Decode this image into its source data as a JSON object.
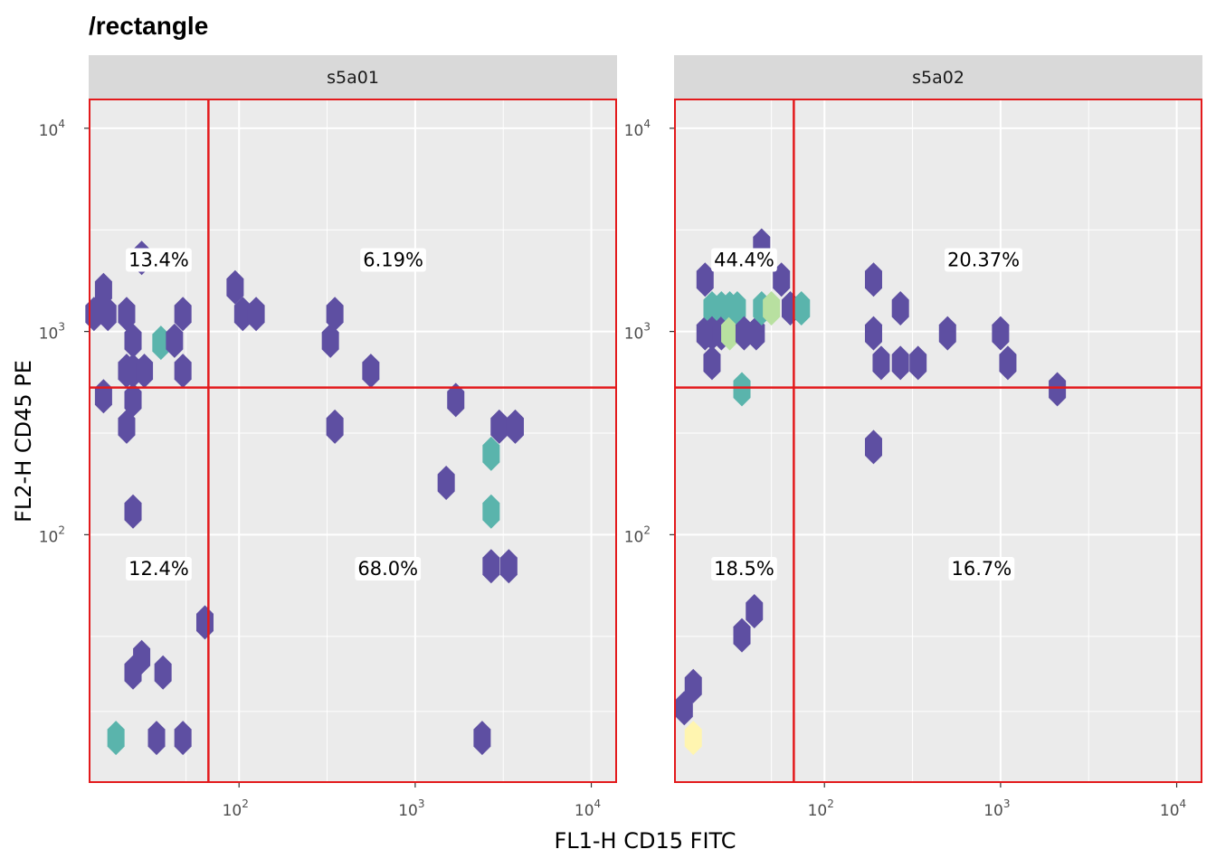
{
  "title": "/rectangle",
  "x_axis_title": "FL1-H CD15 FITC",
  "y_axis_title": "FL2-H CD45 PE",
  "colors": {
    "panel_bg": "#ebebeb",
    "strip_bg": "#d9d9d9",
    "grid": "#ffffff",
    "gate": "#e31a1c",
    "label_bg": "#ffffff",
    "hex_low": "#5e4fa2",
    "hex_mid": "#5ab4ac",
    "hex_high": "#b8e0a0",
    "hex_max": "#fff5b0"
  },
  "chart_data": {
    "type": "scatter",
    "geom": "hexbin",
    "xscale": "log10",
    "yscale": "log10",
    "xlim": [
      14,
      14000
    ],
    "ylim": [
      6,
      14000
    ],
    "x_ticks": [
      {
        "value": 100,
        "base": "10",
        "exp": "2"
      },
      {
        "value": 1000,
        "base": "10",
        "exp": "3"
      },
      {
        "value": 10000,
        "base": "10",
        "exp": "4"
      }
    ],
    "y_ticks": [
      {
        "value": 100,
        "base": "10",
        "exp": "2"
      },
      {
        "value": 1000,
        "base": "10",
        "exp": "3"
      },
      {
        "value": 10000,
        "base": "10",
        "exp": "4"
      }
    ],
    "grid": true,
    "panels": [
      {
        "strip": "s5a01",
        "gate_x": 67,
        "gate_y": 530,
        "gate_box": {
          "x": [
            14,
            14000
          ],
          "y": [
            6,
            14000
          ]
        },
        "quadrants": [
          {
            "label": "13.4%",
            "x": 35,
            "y": 2250
          },
          {
            "label": "6.19%",
            "x": 750,
            "y": 2250
          },
          {
            "label": "12.4%",
            "x": 35,
            "y": 68
          },
          {
            "label": "68.0%",
            "x": 700,
            "y": 68
          }
        ],
        "hexes": [
          {
            "x": 15,
            "y": 1220,
            "level": 1
          },
          {
            "x": 17,
            "y": 1600,
            "level": 1
          },
          {
            "x": 18,
            "y": 1220,
            "level": 1
          },
          {
            "x": 17,
            "y": 480,
            "level": 1
          },
          {
            "x": 23,
            "y": 1220,
            "level": 1
          },
          {
            "x": 25,
            "y": 900,
            "level": 1
          },
          {
            "x": 25,
            "y": 640,
            "level": 1
          },
          {
            "x": 25,
            "y": 460,
            "level": 1
          },
          {
            "x": 23,
            "y": 640,
            "level": 1
          },
          {
            "x": 23,
            "y": 340,
            "level": 1
          },
          {
            "x": 29,
            "y": 640,
            "level": 1
          },
          {
            "x": 28,
            "y": 2300,
            "level": 1
          },
          {
            "x": 36,
            "y": 880,
            "level": 2
          },
          {
            "x": 43,
            "y": 900,
            "level": 1
          },
          {
            "x": 48,
            "y": 1220,
            "level": 1
          },
          {
            "x": 48,
            "y": 640,
            "level": 1
          },
          {
            "x": 25,
            "y": 130,
            "level": 1
          },
          {
            "x": 64,
            "y": 37,
            "level": 1
          },
          {
            "x": 28,
            "y": 25,
            "level": 1
          },
          {
            "x": 25,
            "y": 21,
            "level": 1
          },
          {
            "x": 37,
            "y": 21,
            "level": 1
          },
          {
            "x": 20,
            "y": 10,
            "level": 2
          },
          {
            "x": 34,
            "y": 10,
            "level": 1
          },
          {
            "x": 48,
            "y": 10,
            "level": 1
          },
          {
            "x": 95,
            "y": 1650,
            "level": 1
          },
          {
            "x": 105,
            "y": 1220,
            "level": 1
          },
          {
            "x": 125,
            "y": 1220,
            "level": 1
          },
          {
            "x": 330,
            "y": 900,
            "level": 1
          },
          {
            "x": 350,
            "y": 1220,
            "level": 1
          },
          {
            "x": 350,
            "y": 340,
            "level": 1
          },
          {
            "x": 560,
            "y": 640,
            "level": 1
          },
          {
            "x": 1500,
            "y": 180,
            "level": 1
          },
          {
            "x": 1700,
            "y": 460,
            "level": 1
          },
          {
            "x": 2700,
            "y": 250,
            "level": 2
          },
          {
            "x": 2700,
            "y": 130,
            "level": 2
          },
          {
            "x": 3000,
            "y": 340,
            "level": 1
          },
          {
            "x": 3700,
            "y": 340,
            "level": 1
          },
          {
            "x": 2700,
            "y": 70,
            "level": 1
          },
          {
            "x": 3400,
            "y": 70,
            "level": 1
          },
          {
            "x": 2400,
            "y": 10,
            "level": 1
          }
        ]
      },
      {
        "strip": "s5a02",
        "gate_x": 67,
        "gate_y": 530,
        "gate_box": {
          "x": [
            14,
            14000
          ],
          "y": [
            6,
            14000
          ]
        },
        "quadrants": [
          {
            "label": "44.4%",
            "x": 35,
            "y": 2250
          },
          {
            "label": "20.37%",
            "x": 800,
            "y": 2250
          },
          {
            "label": "18.5%",
            "x": 35,
            "y": 68
          },
          {
            "label": "16.7%",
            "x": 780,
            "y": 68
          }
        ],
        "hexes": [
          {
            "x": 21,
            "y": 1800,
            "level": 1
          },
          {
            "x": 21,
            "y": 980,
            "level": 1
          },
          {
            "x": 23,
            "y": 1300,
            "level": 2
          },
          {
            "x": 23,
            "y": 980,
            "level": 1
          },
          {
            "x": 23,
            "y": 700,
            "level": 1
          },
          {
            "x": 26,
            "y": 1300,
            "level": 2
          },
          {
            "x": 26,
            "y": 980,
            "level": 1
          },
          {
            "x": 29,
            "y": 1300,
            "level": 2
          },
          {
            "x": 29,
            "y": 980,
            "level": 3
          },
          {
            "x": 32,
            "y": 1300,
            "level": 2
          },
          {
            "x": 35,
            "y": 980,
            "level": 1
          },
          {
            "x": 34,
            "y": 520,
            "level": 2
          },
          {
            "x": 41,
            "y": 980,
            "level": 1
          },
          {
            "x": 44,
            "y": 2650,
            "level": 1
          },
          {
            "x": 44,
            "y": 1300,
            "level": 2
          },
          {
            "x": 50,
            "y": 1300,
            "level": 3
          },
          {
            "x": 57,
            "y": 1800,
            "level": 1
          },
          {
            "x": 64,
            "y": 1300,
            "level": 1
          },
          {
            "x": 74,
            "y": 1300,
            "level": 2
          },
          {
            "x": 16,
            "y": 14,
            "level": 1
          },
          {
            "x": 18,
            "y": 18,
            "level": 1
          },
          {
            "x": 18,
            "y": 10,
            "level": 4
          },
          {
            "x": 34,
            "y": 32,
            "level": 1
          },
          {
            "x": 40,
            "y": 42,
            "level": 1
          },
          {
            "x": 190,
            "y": 1800,
            "level": 1
          },
          {
            "x": 190,
            "y": 980,
            "level": 1
          },
          {
            "x": 190,
            "y": 270,
            "level": 1
          },
          {
            "x": 210,
            "y": 700,
            "level": 1
          },
          {
            "x": 270,
            "y": 1300,
            "level": 1
          },
          {
            "x": 270,
            "y": 700,
            "level": 1
          },
          {
            "x": 340,
            "y": 700,
            "level": 1
          },
          {
            "x": 500,
            "y": 980,
            "level": 1
          },
          {
            "x": 1000,
            "y": 980,
            "level": 1
          },
          {
            "x": 1100,
            "y": 700,
            "level": 1
          },
          {
            "x": 2100,
            "y": 520,
            "level": 1
          }
        ]
      }
    ]
  }
}
